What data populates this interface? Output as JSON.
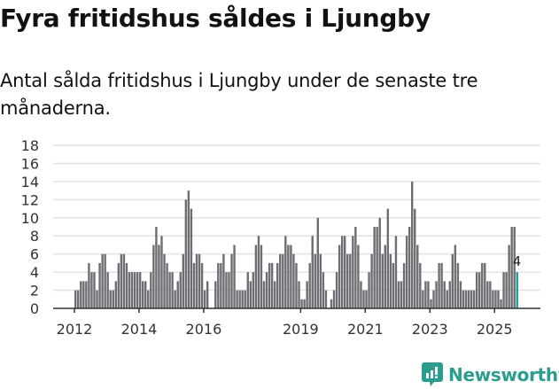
{
  "header": {
    "title": "Fyra fritidshus såldes i Ljungby",
    "subtitle": "Antal sålda fritidshus i Ljungby under de senaste tre månaderna."
  },
  "branding": {
    "logo_text": "Newsworthy",
    "logo_icon": "bar-chart-speech-bubble-icon",
    "color": "#2a9d8f"
  },
  "colors": {
    "bar": "#6e6d73",
    "highlight": "#17a398",
    "grid": "#e3e3e3",
    "axis": "#333333"
  },
  "chart_data": {
    "type": "bar",
    "title": "Fyra fritidshus såldes i Ljungby",
    "subtitle": "Antal sålda fritidshus i Ljungby under de senaste tre månaderna.",
    "xlabel": "",
    "ylabel": "",
    "ylim": [
      0,
      18
    ],
    "yticks": [
      0,
      2,
      4,
      6,
      8,
      10,
      12,
      14,
      16,
      18
    ],
    "xticks": [
      "2012",
      "2014",
      "2016",
      "2019",
      "2021",
      "2023",
      "2025"
    ],
    "grid": true,
    "legend": null,
    "start": "2012-01",
    "frequency": "monthly",
    "annotation": {
      "label": "4",
      "index": "last"
    },
    "values": [
      2,
      2,
      3,
      3,
      3,
      5,
      4,
      4,
      2,
      5,
      6,
      6,
      4,
      2,
      2,
      3,
      5,
      6,
      6,
      5,
      4,
      4,
      4,
      4,
      4,
      3,
      3,
      2,
      4,
      7,
      9,
      7,
      8,
      6,
      5,
      4,
      4,
      2,
      3,
      4,
      6,
      12,
      13,
      11,
      5,
      6,
      6,
      5,
      2,
      3,
      0,
      0,
      3,
      5,
      5,
      6,
      4,
      4,
      6,
      7,
      2,
      2,
      2,
      2,
      4,
      3,
      4,
      7,
      8,
      7,
      3,
      4,
      5,
      5,
      3,
      5,
      6,
      6,
      8,
      7,
      7,
      6,
      5,
      3,
      1,
      1,
      3,
      5,
      8,
      6,
      10,
      6,
      4,
      2,
      0,
      1,
      2,
      4,
      7,
      8,
      8,
      6,
      6,
      8,
      9,
      7,
      3,
      2,
      2,
      4,
      6,
      9,
      9,
      10,
      6,
      7,
      11,
      6,
      5,
      8,
      3,
      3,
      5,
      8,
      9,
      14,
      11,
      7,
      5,
      2,
      3,
      3,
      1,
      2,
      3,
      5,
      5,
      3,
      2,
      3,
      6,
      7,
      5,
      3,
      2,
      2,
      2,
      2,
      2,
      4,
      4,
      5,
      5,
      3,
      3,
      2,
      2,
      2,
      1,
      4,
      4,
      7,
      9,
      9,
      4
    ]
  }
}
